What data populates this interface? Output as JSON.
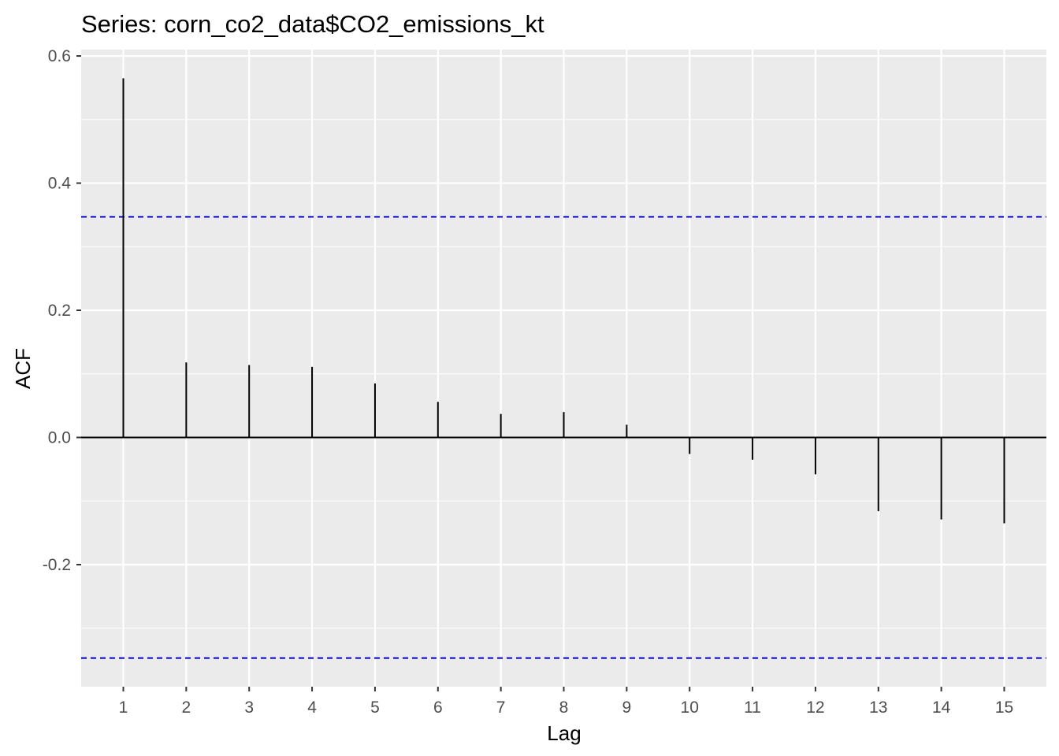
{
  "chart_data": {
    "type": "bar",
    "title": "Series: corn_co2_data$CO2_emissions_kt",
    "xlabel": "Lag",
    "ylabel": "ACF",
    "x": [
      1,
      2,
      3,
      4,
      5,
      6,
      7,
      8,
      9,
      10,
      11,
      12,
      13,
      14,
      15
    ],
    "values": [
      0.565,
      0.118,
      0.114,
      0.111,
      0.085,
      0.056,
      0.037,
      0.04,
      0.02,
      -0.026,
      -0.035,
      -0.058,
      -0.116,
      -0.129,
      -0.135
    ],
    "confidence_bounds": [
      0.347,
      -0.347
    ],
    "xlim": [
      0.33,
      15.67
    ],
    "ylim": [
      -0.392,
      0.61
    ],
    "x_ticks": [
      1,
      2,
      3,
      4,
      5,
      6,
      7,
      8,
      9,
      10,
      11,
      12,
      13,
      14,
      15
    ],
    "y_ticks": [
      -0.2,
      0.0,
      0.2,
      0.4,
      0.6
    ],
    "y_tick_labels": [
      "-0.2",
      "0.0",
      "0.2",
      "0.4",
      "0.6"
    ],
    "grid": true,
    "colors": {
      "panel_background": "#ebebeb",
      "grid": "#ffffff",
      "bar": "#000000",
      "zero_line": "#000000",
      "confidence_line": "#0000cc"
    }
  }
}
